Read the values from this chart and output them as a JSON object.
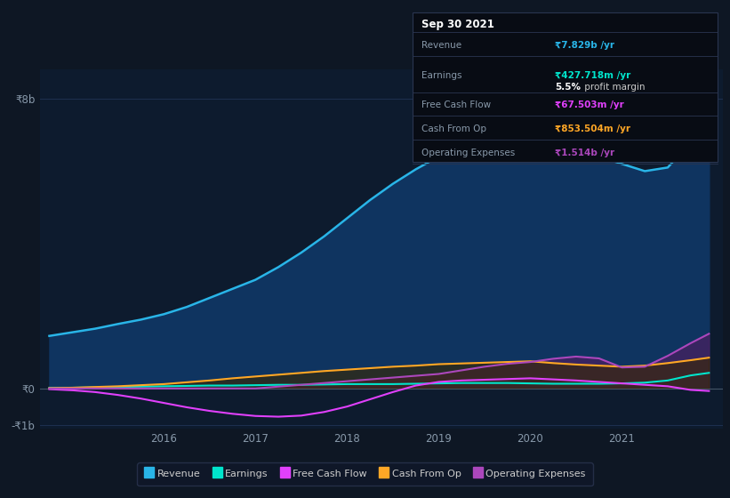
{
  "bg_color": "#0e1724",
  "plot_bg_color": "#0d1b2e",
  "grid_color": "#1e3050",
  "x_years": [
    2014.75,
    2015.0,
    2015.25,
    2015.5,
    2015.75,
    2016.0,
    2016.25,
    2016.5,
    2016.75,
    2017.0,
    2017.25,
    2017.5,
    2017.75,
    2018.0,
    2018.25,
    2018.5,
    2018.75,
    2019.0,
    2019.25,
    2019.5,
    2019.75,
    2020.0,
    2020.25,
    2020.5,
    2020.75,
    2021.0,
    2021.25,
    2021.5,
    2021.75,
    2021.95
  ],
  "revenue": [
    1.45,
    1.55,
    1.65,
    1.78,
    1.9,
    2.05,
    2.25,
    2.5,
    2.75,
    3.0,
    3.35,
    3.75,
    4.2,
    4.7,
    5.2,
    5.65,
    6.05,
    6.4,
    6.8,
    7.15,
    7.4,
    7.5,
    7.1,
    6.7,
    6.4,
    6.2,
    6.0,
    6.1,
    6.8,
    7.83
  ],
  "earnings": [
    0.02,
    0.02,
    0.03,
    0.04,
    0.05,
    0.06,
    0.07,
    0.08,
    0.08,
    0.09,
    0.1,
    0.1,
    0.11,
    0.12,
    0.12,
    0.12,
    0.13,
    0.14,
    0.15,
    0.15,
    0.15,
    0.14,
    0.13,
    0.13,
    0.13,
    0.14,
    0.16,
    0.22,
    0.36,
    0.43
  ],
  "free_cash_flow": [
    -0.02,
    -0.05,
    -0.1,
    -0.18,
    -0.28,
    -0.4,
    -0.52,
    -0.62,
    -0.7,
    -0.76,
    -0.78,
    -0.75,
    -0.65,
    -0.5,
    -0.3,
    -0.1,
    0.08,
    0.18,
    0.22,
    0.24,
    0.26,
    0.28,
    0.25,
    0.22,
    0.18,
    0.14,
    0.1,
    0.06,
    -0.04,
    -0.07
  ],
  "cash_from_op": [
    0.01,
    0.02,
    0.04,
    0.06,
    0.09,
    0.12,
    0.17,
    0.22,
    0.28,
    0.33,
    0.38,
    0.43,
    0.48,
    0.52,
    0.56,
    0.6,
    0.63,
    0.67,
    0.69,
    0.71,
    0.73,
    0.75,
    0.7,
    0.66,
    0.63,
    0.6,
    0.63,
    0.7,
    0.78,
    0.85
  ],
  "operating_expenses": [
    0.0,
    0.0,
    0.0,
    0.0,
    0.0,
    0.0,
    0.0,
    0.0,
    0.0,
    0.0,
    0.05,
    0.1,
    0.15,
    0.2,
    0.25,
    0.3,
    0.35,
    0.4,
    0.5,
    0.6,
    0.68,
    0.73,
    0.82,
    0.88,
    0.83,
    0.58,
    0.6,
    0.9,
    1.25,
    1.51
  ],
  "ylim": [
    -1.1,
    8.8
  ],
  "ytick_vals": [
    -1,
    0,
    8
  ],
  "ytick_labels": [
    "-₹1b",
    "₹0",
    "₹8b"
  ],
  "xticks": [
    2016,
    2017,
    2018,
    2019,
    2020,
    2021
  ],
  "xlim": [
    2014.65,
    2022.1
  ],
  "revenue_line_color": "#29b5e8",
  "revenue_fill_color": "#0f3460",
  "earnings_color": "#00e5cc",
  "fcf_color": "#e040fb",
  "cashop_color": "#ffa726",
  "opex_color": "#ab47bc",
  "opex_fill_color": "#4a2060",
  "cashop_fill_color": "#3a2800"
}
